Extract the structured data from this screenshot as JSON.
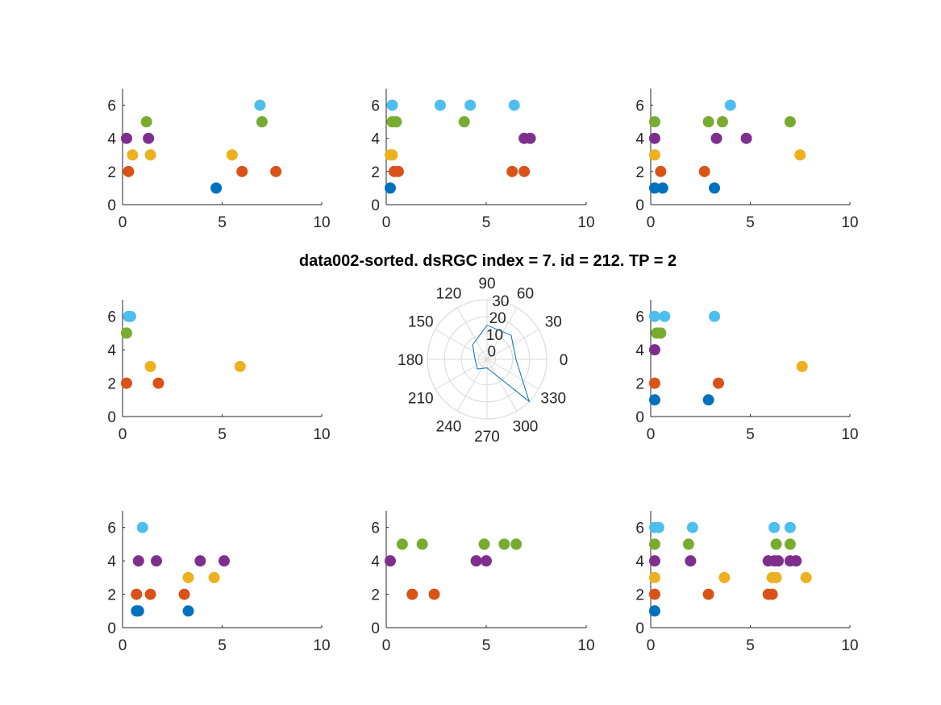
{
  "title": "data002-sorted. dsRGC index = 7. id = 212. TP = 2",
  "colors": {
    "1": "#0072BD",
    "2": "#D95319",
    "3": "#EDB120",
    "4": "#7E2F8E",
    "5": "#77AC30",
    "6": "#4DBEEE",
    "axis": "#262626",
    "polar_line": "#0072BD",
    "polar_grid": "#d9d9d9"
  },
  "chart_data": [
    {
      "type": "scatter",
      "position": "top-left",
      "xlim": [
        0,
        10
      ],
      "ylim": [
        0,
        7
      ],
      "xticks": [
        "0",
        "5",
        "10"
      ],
      "yticks": [
        "0",
        "2",
        "4",
        "6"
      ],
      "points": [
        [
          4.7,
          1
        ],
        [
          0.3,
          2
        ],
        [
          6.0,
          2
        ],
        [
          7.7,
          2
        ],
        [
          0.5,
          3
        ],
        [
          1.4,
          3
        ],
        [
          5.5,
          3
        ],
        [
          0.2,
          4
        ],
        [
          1.3,
          4
        ],
        [
          1.2,
          5
        ],
        [
          7.0,
          5
        ],
        [
          6.9,
          6
        ]
      ]
    },
    {
      "type": "scatter",
      "position": "top-center",
      "xlim": [
        0,
        10
      ],
      "ylim": [
        0,
        7
      ],
      "xticks": [
        "0",
        "5",
        "10"
      ],
      "yticks": [
        "0",
        "2",
        "4",
        "6"
      ],
      "points": [
        [
          0.2,
          1
        ],
        [
          0.4,
          2
        ],
        [
          0.6,
          2
        ],
        [
          6.3,
          2
        ],
        [
          6.9,
          2
        ],
        [
          0.2,
          3
        ],
        [
          0.3,
          3
        ],
        [
          6.9,
          4
        ],
        [
          7.2,
          4
        ],
        [
          0.3,
          5
        ],
        [
          0.5,
          5
        ],
        [
          3.9,
          5
        ],
        [
          0.3,
          6
        ],
        [
          2.7,
          6
        ],
        [
          4.2,
          6
        ],
        [
          6.4,
          6
        ]
      ]
    },
    {
      "type": "scatter",
      "position": "top-right",
      "xlim": [
        0,
        10
      ],
      "ylim": [
        0,
        7
      ],
      "xticks": [
        "0",
        "5",
        "10"
      ],
      "yticks": [
        "0",
        "2",
        "4",
        "6"
      ],
      "points": [
        [
          0.2,
          1
        ],
        [
          0.6,
          1
        ],
        [
          3.2,
          1
        ],
        [
          0.5,
          2
        ],
        [
          2.7,
          2
        ],
        [
          0.2,
          3
        ],
        [
          7.5,
          3
        ],
        [
          0.2,
          4
        ],
        [
          3.3,
          4
        ],
        [
          4.8,
          4
        ],
        [
          0.2,
          5
        ],
        [
          2.9,
          5
        ],
        [
          3.6,
          5
        ],
        [
          7.0,
          5
        ],
        [
          4.0,
          6
        ]
      ]
    },
    {
      "type": "scatter",
      "position": "middle-left",
      "xlim": [
        0,
        10
      ],
      "ylim": [
        0,
        7
      ],
      "xticks": [
        "0",
        "5",
        "10"
      ],
      "yticks": [
        "0",
        "2",
        "4",
        "6"
      ],
      "points": [
        [
          0.2,
          2
        ],
        [
          1.8,
          2
        ],
        [
          1.4,
          3
        ],
        [
          5.9,
          3
        ],
        [
          0.2,
          5
        ],
        [
          0.3,
          6
        ],
        [
          0.4,
          6
        ]
      ]
    },
    {
      "type": "polar",
      "position": "middle-center",
      "angle_labels": [
        "0",
        "30",
        "60",
        "90",
        "120",
        "150",
        "180",
        "210",
        "240",
        "270",
        "300",
        "330"
      ],
      "r_labels": [
        "0",
        "10",
        "20",
        "30"
      ],
      "rlim": [
        -5,
        30
      ],
      "series": [
        {
          "theta": [
            0,
            45,
            90,
            135,
            180,
            225,
            270,
            315
          ],
          "r": [
            12,
            15,
            15,
            7,
            2,
            3,
            0,
            30
          ]
        }
      ]
    },
    {
      "type": "scatter",
      "position": "middle-right",
      "xlim": [
        0,
        10
      ],
      "ylim": [
        0,
        7
      ],
      "xticks": [
        "0",
        "5",
        "10"
      ],
      "yticks": [
        "0",
        "2",
        "4",
        "6"
      ],
      "points": [
        [
          0.2,
          1
        ],
        [
          2.9,
          1
        ],
        [
          0.2,
          2
        ],
        [
          3.4,
          2
        ],
        [
          7.6,
          3
        ],
        [
          0.2,
          4
        ],
        [
          0.3,
          5
        ],
        [
          0.5,
          5
        ],
        [
          0.2,
          6
        ],
        [
          0.7,
          6
        ],
        [
          3.2,
          6
        ]
      ]
    },
    {
      "type": "scatter",
      "position": "bottom-left",
      "xlim": [
        0,
        10
      ],
      "ylim": [
        0,
        7
      ],
      "xticks": [
        "0",
        "5",
        "10"
      ],
      "yticks": [
        "0",
        "2",
        "4",
        "6"
      ],
      "points": [
        [
          0.7,
          1
        ],
        [
          0.8,
          1
        ],
        [
          3.3,
          1
        ],
        [
          0.7,
          2
        ],
        [
          1.4,
          2
        ],
        [
          3.1,
          2
        ],
        [
          3.3,
          3
        ],
        [
          4.6,
          3
        ],
        [
          0.8,
          4
        ],
        [
          1.7,
          4
        ],
        [
          3.9,
          4
        ],
        [
          5.1,
          4
        ],
        [
          1.0,
          6
        ]
      ]
    },
    {
      "type": "scatter",
      "position": "bottom-center",
      "xlim": [
        0,
        10
      ],
      "ylim": [
        0,
        7
      ],
      "xticks": [
        "0",
        "5",
        "10"
      ],
      "yticks": [
        "0",
        "2",
        "4",
        "6"
      ],
      "points": [
        [
          1.3,
          2
        ],
        [
          2.4,
          2
        ],
        [
          0.2,
          4
        ],
        [
          4.5,
          4
        ],
        [
          5.0,
          4
        ],
        [
          0.8,
          5
        ],
        [
          1.8,
          5
        ],
        [
          4.9,
          5
        ],
        [
          5.9,
          5
        ],
        [
          6.5,
          5
        ]
      ]
    },
    {
      "type": "scatter",
      "position": "bottom-right",
      "xlim": [
        0,
        10
      ],
      "ylim": [
        0,
        7
      ],
      "xticks": [
        "0",
        "5",
        "10"
      ],
      "yticks": [
        "0",
        "2",
        "4",
        "6"
      ],
      "points": [
        [
          0.2,
          1
        ],
        [
          0.2,
          2
        ],
        [
          2.9,
          2
        ],
        [
          5.9,
          2
        ],
        [
          6.1,
          2
        ],
        [
          0.2,
          3
        ],
        [
          3.7,
          3
        ],
        [
          6.1,
          3
        ],
        [
          6.3,
          3
        ],
        [
          7.8,
          3
        ],
        [
          0.2,
          4
        ],
        [
          2.0,
          4
        ],
        [
          5.9,
          4
        ],
        [
          6.2,
          4
        ],
        [
          6.4,
          4
        ],
        [
          7.0,
          4
        ],
        [
          7.3,
          4
        ],
        [
          0.2,
          5
        ],
        [
          1.9,
          5
        ],
        [
          6.3,
          5
        ],
        [
          7.0,
          5
        ],
        [
          0.2,
          6
        ],
        [
          0.4,
          6
        ],
        [
          2.1,
          6
        ],
        [
          6.2,
          6
        ],
        [
          7.0,
          6
        ]
      ]
    }
  ]
}
